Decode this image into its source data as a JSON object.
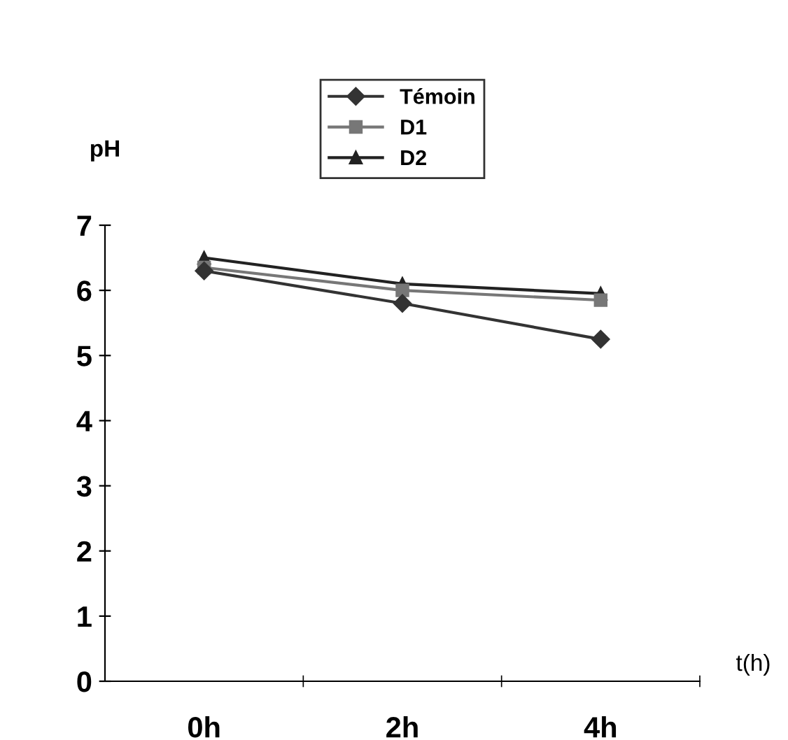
{
  "chart_data": {
    "type": "line",
    "xlabel": "t(h)",
    "ylabel": "pH",
    "categories": [
      "0h",
      "2h",
      "4h"
    ],
    "series": [
      {
        "name": "Témoin",
        "color": "#333333",
        "values": [
          6.3,
          5.8,
          5.25
        ],
        "marker": "diamond"
      },
      {
        "name": "D1",
        "color": "#777777",
        "values": [
          6.35,
          6.0,
          5.85
        ],
        "marker": "square"
      },
      {
        "name": "D2",
        "color": "#222222",
        "values": [
          6.5,
          6.1,
          5.95
        ],
        "marker": "triangle"
      }
    ],
    "ylim": [
      0,
      7
    ],
    "yticks": [
      0,
      1,
      2,
      3,
      4,
      5,
      6,
      7
    ],
    "grid": false,
    "legend": "top",
    "line_style": "solid"
  }
}
